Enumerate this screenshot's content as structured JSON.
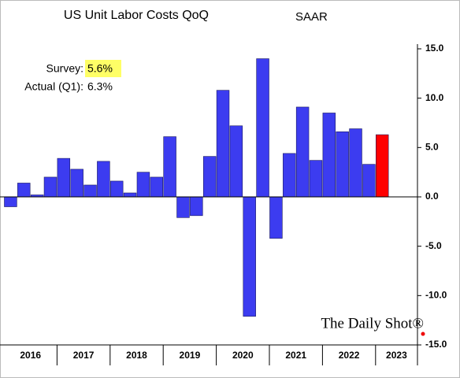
{
  "chart_data": {
    "type": "bar",
    "title": "US Unit Labor Costs QoQ",
    "subtitle": "SAAR",
    "annotations": [
      {
        "label": "Survey:",
        "value": "5.6%"
      },
      {
        "label": "Actual (Q1):",
        "value": "6.3%"
      }
    ],
    "watermark": "The Daily Shot®",
    "categories": [
      null,
      null,
      null,
      null,
      null,
      null,
      null,
      null,
      null,
      null,
      null,
      null,
      null,
      null,
      null,
      null,
      null,
      null,
      null,
      null,
      null,
      null,
      null,
      null,
      null,
      null,
      null,
      null,
      null
    ],
    "year_labels": [
      "2016",
      "2017",
      "2018",
      "2019",
      "2020",
      "2021",
      "2022",
      "2023"
    ],
    "values": [
      -1.0,
      1.4,
      0.2,
      2.0,
      3.9,
      2.8,
      1.2,
      3.6,
      1.6,
      0.4,
      2.5,
      2.0,
      6.1,
      -2.1,
      -1.9,
      4.1,
      10.8,
      7.2,
      -12.1,
      14.0,
      -4.2,
      4.4,
      9.1,
      3.7,
      8.5,
      6.6,
      6.9,
      3.3,
      6.3
    ],
    "colors": [
      "#3c3cf0",
      "#3c3cf0",
      "#3c3cf0",
      "#3c3cf0",
      "#3c3cf0",
      "#3c3cf0",
      "#3c3cf0",
      "#3c3cf0",
      "#3c3cf0",
      "#3c3cf0",
      "#3c3cf0",
      "#3c3cf0",
      "#3c3cf0",
      "#3c3cf0",
      "#3c3cf0",
      "#3c3cf0",
      "#3c3cf0",
      "#3c3cf0",
      "#3c3cf0",
      "#3c3cf0",
      "#3c3cf0",
      "#3c3cf0",
      "#3c3cf0",
      "#3c3cf0",
      "#3c3cf0",
      "#3c3cf0",
      "#3c3cf0",
      "#3c3cf0",
      "#ff0000"
    ],
    "ylim": [
      -15,
      15
    ],
    "yticks": [
      {
        "value": -15,
        "label": "-15.0"
      },
      {
        "value": -10,
        "label": "-10.0"
      },
      {
        "value": -5,
        "label": "-5.0"
      },
      {
        "value": 0,
        "label": "0.0"
      },
      {
        "value": 5,
        "label": "5.0"
      },
      {
        "value": 10,
        "label": "10.0"
      },
      {
        "value": 15,
        "label": "15.0"
      }
    ],
    "y_axis_side": "right",
    "grid": false
  }
}
